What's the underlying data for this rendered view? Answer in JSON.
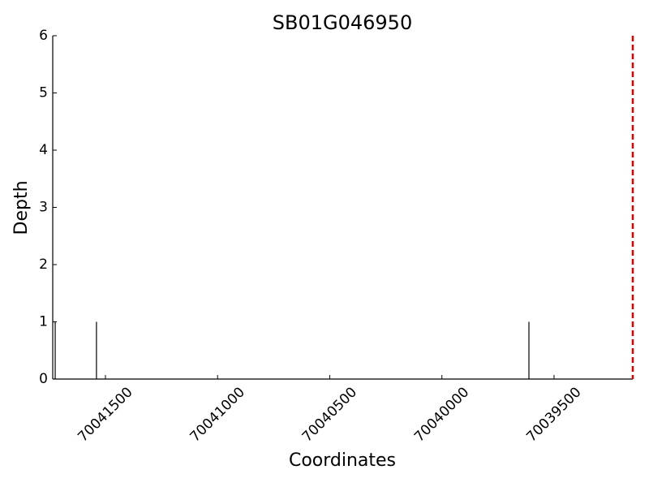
{
  "chart_data": {
    "type": "spike",
    "title": "SB01G046950",
    "x_label": "Coordinates",
    "y_label": "Depth",
    "x": [
      70041724,
      70041540,
      70039612
    ],
    "values": [
      1,
      1,
      1
    ],
    "color": "#000000",
    "vline": {
      "x": 70039149,
      "color": "#e00000"
    },
    "xlim": [
      70041735,
      70039149
    ],
    "xticks": [
      70041500,
      70041000,
      70040500,
      70040000,
      70039500
    ],
    "ylim": [
      0,
      6
    ],
    "yticks": [
      0,
      1,
      2,
      3,
      4,
      5,
      6
    ],
    "grid": false
  }
}
